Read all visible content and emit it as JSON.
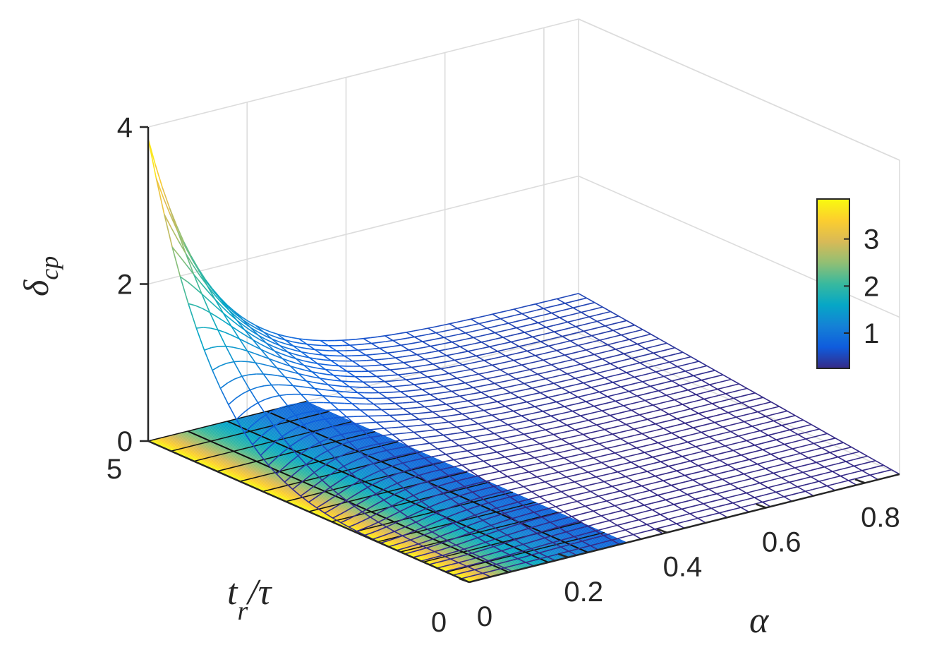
{
  "chart_data": {
    "type": "surface",
    "zlabel": {
      "main": "δ",
      "sub": "cp"
    },
    "ylabel": {
      "main": "t",
      "sub": "r",
      "tail": "/τ"
    },
    "xlabel": "α",
    "x_range": [
      0,
      0.87
    ],
    "y_range": [
      0,
      5
    ],
    "zlim": [
      0,
      4
    ],
    "x_ticks": [
      "0",
      "0.2",
      "0.4",
      "0.6",
      "0.8"
    ],
    "x_tick_values": [
      0,
      0.2,
      0.4,
      0.6,
      0.8
    ],
    "y_ticks": [
      "0",
      "5"
    ],
    "z_ticks": [
      "0",
      "2",
      "4"
    ],
    "z_tick_values": [
      0,
      2,
      4
    ],
    "colormap": "parula",
    "colorbar": {
      "ticks": [
        "1",
        "2",
        "3"
      ],
      "tick_values": [
        1,
        2,
        3
      ],
      "range": [
        0.25,
        3.85
      ]
    },
    "grid": true,
    "floor_projection": true,
    "surface_description": "δ_cp = 3.85 at (α=0, t_r/τ=5), decays toward ≈0.5 along α; zero along t_r/τ=0",
    "sample_points": [
      {
        "alpha": 0,
        "tr_tau": 5,
        "delta": 3.85
      },
      {
        "alpha": 0.2,
        "tr_tau": 5,
        "delta": 1.75
      },
      {
        "alpha": 0.4,
        "tr_tau": 5,
        "delta": 0.95
      },
      {
        "alpha": 0.87,
        "tr_tau": 5,
        "delta": 0.55
      },
      {
        "alpha": 0,
        "tr_tau": 0,
        "delta": 0
      }
    ]
  }
}
